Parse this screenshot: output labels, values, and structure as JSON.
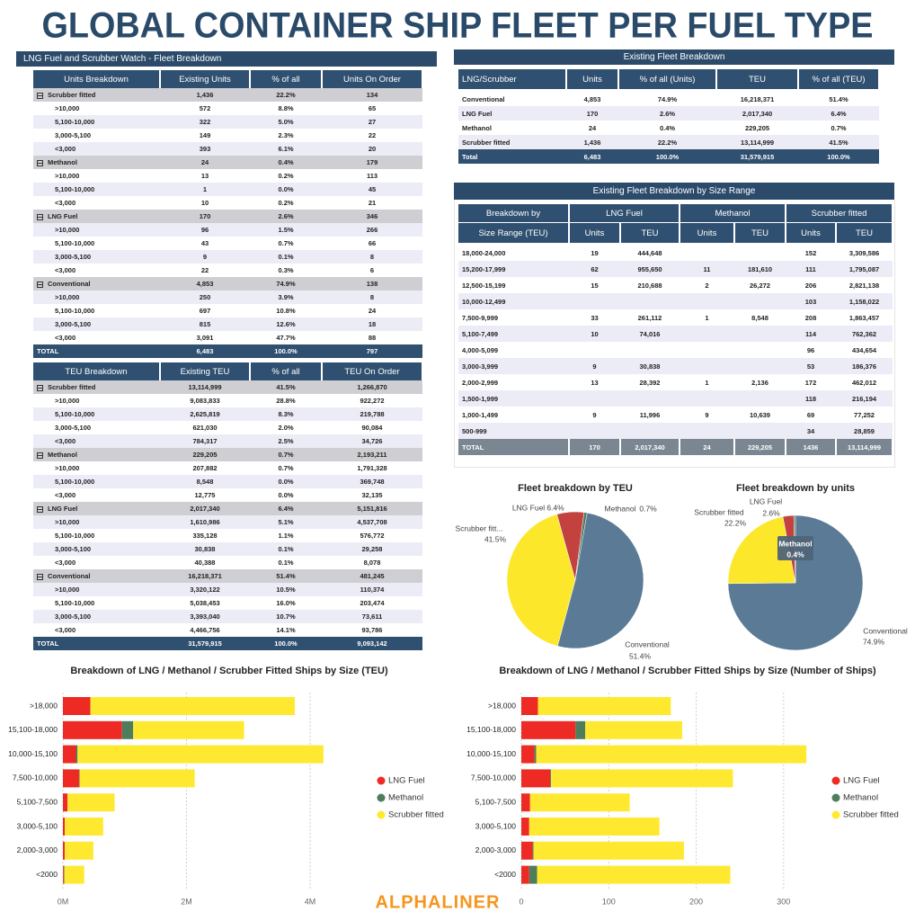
{
  "title": "GLOBAL CONTAINER SHIP FLEET PER FUEL TYPE",
  "fleet_watch": {
    "title": "LNG Fuel and Scrubber Watch - Fleet Breakdown",
    "units_table": {
      "header": [
        "Units Breakdown",
        "Existing Units",
        "% of all",
        "Units On Order"
      ],
      "groups": [
        {
          "row": [
            "Scrubber fitted",
            "1,436",
            "22.2%",
            "134"
          ],
          "subrows": [
            [
              ">10,000",
              "572",
              "8.8%",
              "65"
            ],
            [
              "5,100-10,000",
              "322",
              "5.0%",
              "27"
            ],
            [
              "3,000-5,100",
              "149",
              "2.3%",
              "22"
            ],
            [
              "<3,000",
              "393",
              "6.1%",
              "20"
            ]
          ]
        },
        {
          "row": [
            "Methanol",
            "24",
            "0.4%",
            "179"
          ],
          "subrows": [
            [
              ">10,000",
              "13",
              "0.2%",
              "113"
            ],
            [
              "5,100-10,000",
              "1",
              "0.0%",
              "45"
            ],
            [
              "<3,000",
              "10",
              "0.2%",
              "21"
            ]
          ]
        },
        {
          "row": [
            "LNG Fuel",
            "170",
            "2.6%",
            "346"
          ],
          "subrows": [
            [
              ">10,000",
              "96",
              "1.5%",
              "266"
            ],
            [
              "5,100-10,000",
              "43",
              "0.7%",
              "66"
            ],
            [
              "3,000-5,100",
              "9",
              "0.1%",
              "8"
            ],
            [
              "<3,000",
              "22",
              "0.3%",
              "6"
            ]
          ]
        },
        {
          "row": [
            "Conventional",
            "4,853",
            "74.9%",
            "138"
          ],
          "subrows": [
            [
              ">10,000",
              "250",
              "3.9%",
              "8"
            ],
            [
              "5,100-10,000",
              "697",
              "10.8%",
              "24"
            ],
            [
              "3,000-5,100",
              "815",
              "12.6%",
              "18"
            ],
            [
              "<3,000",
              "3,091",
              "47.7%",
              "88"
            ]
          ]
        }
      ],
      "total": [
        "TOTAL",
        "6,483",
        "100.0%",
        "797"
      ]
    },
    "teu_table": {
      "header": [
        "TEU Breakdown",
        "Existing TEU",
        "% of all",
        "TEU On Order"
      ],
      "groups": [
        {
          "row": [
            "Scrubber fitted",
            "13,114,999",
            "41.5%",
            "1,266,870"
          ],
          "subrows": [
            [
              ">10,000",
              "9,083,833",
              "28.8%",
              "922,272"
            ],
            [
              "5,100-10,000",
              "2,625,819",
              "8.3%",
              "219,788"
            ],
            [
              "3,000-5,100",
              "621,030",
              "2.0%",
              "90,084"
            ],
            [
              "<3,000",
              "784,317",
              "2.5%",
              "34,726"
            ]
          ]
        },
        {
          "row": [
            "Methanol",
            "229,205",
            "0.7%",
            "2,193,211"
          ],
          "subrows": [
            [
              ">10,000",
              "207,882",
              "0.7%",
              "1,791,328"
            ],
            [
              "5,100-10,000",
              "8,548",
              "0.0%",
              "369,748"
            ],
            [
              "<3,000",
              "12,775",
              "0.0%",
              "32,135"
            ]
          ]
        },
        {
          "row": [
            "LNG Fuel",
            "2,017,340",
            "6.4%",
            "5,151,816"
          ],
          "subrows": [
            [
              ">10,000",
              "1,610,986",
              "5.1%",
              "4,537,708"
            ],
            [
              "5,100-10,000",
              "335,128",
              "1.1%",
              "576,772"
            ],
            [
              "3,000-5,100",
              "30,838",
              "0.1%",
              "29,258"
            ],
            [
              "<3,000",
              "40,388",
              "0.1%",
              "8,078"
            ]
          ]
        },
        {
          "row": [
            "Conventional",
            "16,218,371",
            "51.4%",
            "481,245"
          ],
          "subrows": [
            [
              ">10,000",
              "3,320,122",
              "10.5%",
              "110,374"
            ],
            [
              "5,100-10,000",
              "5,038,453",
              "16.0%",
              "203,474"
            ],
            [
              "3,000-5,100",
              "3,393,040",
              "10.7%",
              "73,611"
            ],
            [
              "<3,000",
              "4,466,756",
              "14.1%",
              "93,786"
            ]
          ]
        }
      ],
      "total": [
        "TOTAL",
        "31,579,915",
        "100.0%",
        "9,093,142"
      ]
    }
  },
  "existing_fleet": {
    "title": "Existing Fleet Breakdown",
    "header": [
      "LNG/Scrubber",
      "Units",
      "% of all (Units)",
      "TEU",
      "% of all (TEU)"
    ],
    "rows": [
      [
        "Conventional",
        "4,853",
        "74.9%",
        "16,218,371",
        "51.4%"
      ],
      [
        "LNG Fuel",
        "170",
        "2.6%",
        "2,017,340",
        "6.4%"
      ],
      [
        "Methanol",
        "24",
        "0.4%",
        "229,205",
        "0.7%"
      ],
      [
        "Scrubber fitted",
        "1,436",
        "22.2%",
        "13,114,999",
        "41.5%"
      ]
    ],
    "total": [
      "Total",
      "6,483",
      "100.0%",
      "31,579,915",
      "100.0%"
    ]
  },
  "size_range": {
    "title": "Existing Fleet Breakdown by Size Range",
    "header_top": [
      "Breakdown by",
      "LNG Fuel",
      "Methanol",
      "Scrubber fitted"
    ],
    "header_sub": [
      "Size Range (TEU)",
      "Units",
      "TEU",
      "Units",
      "TEU",
      "Units",
      "TEU"
    ],
    "rows": [
      [
        "18,000-24,000",
        "19",
        "444,648",
        null,
        null,
        "152",
        "3,309,586"
      ],
      [
        "15,200-17,999",
        "62",
        "955,650",
        "11",
        "181,610",
        "111",
        "1,795,087"
      ],
      [
        "12,500-15,199",
        "15",
        "210,688",
        "2",
        "26,272",
        "206",
        "2,821,138"
      ],
      [
        "10,000-12,499",
        null,
        null,
        null,
        null,
        "103",
        "1,158,022"
      ],
      [
        "7,500-9,999",
        "33",
        "261,112",
        "1",
        "8,548",
        "208",
        "1,863,457"
      ],
      [
        "5,100-7,499",
        "10",
        "74,016",
        null,
        null,
        "114",
        "762,362"
      ],
      [
        "4,000-5,099",
        null,
        null,
        null,
        null,
        "96",
        "434,654"
      ],
      [
        "3,000-3,999",
        "9",
        "30,838",
        null,
        null,
        "53",
        "186,376"
      ],
      [
        "2,000-2,999",
        "13",
        "28,392",
        "1",
        "2,136",
        "172",
        "462,012"
      ],
      [
        "1,500-1,999",
        null,
        null,
        null,
        null,
        "118",
        "216,194"
      ],
      [
        "1,000-1,499",
        "9",
        "11,996",
        "9",
        "10,639",
        "69",
        "77,252"
      ],
      [
        "500-999",
        null,
        null,
        null,
        null,
        "34",
        "28,859"
      ]
    ],
    "total": [
      "TOTAL",
      "170",
      "2,017,340",
      "24",
      "229,205",
      "1436",
      "13,114,999"
    ]
  },
  "chart_data": [
    {
      "type": "pie",
      "title": "Fleet breakdown by TEU",
      "categories": [
        "Conventional",
        "Scrubber fitt...",
        "LNG Fuel",
        "Methanol"
      ],
      "values": [
        51.4,
        41.5,
        6.4,
        0.7
      ],
      "value_labels": [
        "51.4%",
        "41.5%",
        "6.4%",
        "0.7%"
      ],
      "colors": [
        "#5b7a96",
        "#fde72a",
        "#c3423f",
        "#4e7a5e"
      ]
    },
    {
      "type": "pie",
      "title": "Fleet breakdown by units",
      "categories": [
        "Conventional",
        "Scrubber fitted",
        "LNG Fuel",
        "Methanol"
      ],
      "values": [
        74.9,
        22.2,
        2.6,
        0.4
      ],
      "value_labels": [
        "74.9%",
        "22.2%",
        "2.6%",
        "0.4%"
      ],
      "colors": [
        "#5b7a96",
        "#fde72a",
        "#c3423f",
        "#4e7a5e"
      ]
    },
    {
      "type": "bar",
      "orientation": "horizontal",
      "stacked": true,
      "title": "Breakdown of LNG / Methanol / Scrubber Fitted Ships by Size (TEU)",
      "categories": [
        ">18,000",
        "15,100-18,000",
        "10,000-15,100",
        "7,500-10,000",
        "5,100-7,500",
        "3,000-5,100",
        "2,000-3,000",
        "<2000"
      ],
      "series": [
        {
          "name": "LNG Fuel",
          "color": "#ee2a24",
          "values": [
            444648,
            955650,
            210688,
            261112,
            74016,
            30838,
            28392,
            11996
          ]
        },
        {
          "name": "Methanol",
          "color": "#4e7d5e",
          "values": [
            0,
            181610,
            26272,
            8548,
            0,
            0,
            2136,
            10639
          ]
        },
        {
          "name": "Scrubber fitted",
          "color": "#ffe930",
          "values": [
            3309586,
            1795087,
            3979160,
            1863457,
            762362,
            621030,
            462012,
            322305
          ]
        }
      ],
      "xlim": [
        0,
        4300000
      ],
      "xticks": [
        {
          "value": 0,
          "label": "0M"
        },
        {
          "value": 2000000,
          "label": "2M"
        },
        {
          "value": 4000000,
          "label": "4M"
        }
      ],
      "grid": true,
      "legend": "right"
    },
    {
      "type": "bar",
      "orientation": "horizontal",
      "stacked": true,
      "title": "Breakdown of LNG / Methanol / Scrubber Fitted Ships by Size (Number of Ships)",
      "categories": [
        ">18,000",
        "15,100-18,000",
        "10,000-15,100",
        "7,500-10,000",
        "5,100-7,500",
        "3,000-5,100",
        "2,000-3,000",
        "<2000"
      ],
      "series": [
        {
          "name": "LNG Fuel",
          "color": "#ee2a24",
          "values": [
            19,
            62,
            15,
            33,
            10,
            9,
            13,
            9
          ]
        },
        {
          "name": "Methanol",
          "color": "#4e7d5e",
          "values": [
            0,
            11,
            2,
            1,
            0,
            0,
            1,
            9
          ]
        },
        {
          "name": "Scrubber fitted",
          "color": "#ffe930",
          "values": [
            152,
            111,
            309,
            208,
            114,
            149,
            172,
            221
          ]
        }
      ],
      "xlim": [
        0,
        330
      ],
      "xticks": [
        0,
        100,
        200,
        300
      ],
      "grid": true,
      "legend": "right"
    }
  ],
  "footer": "ALPHALINER"
}
